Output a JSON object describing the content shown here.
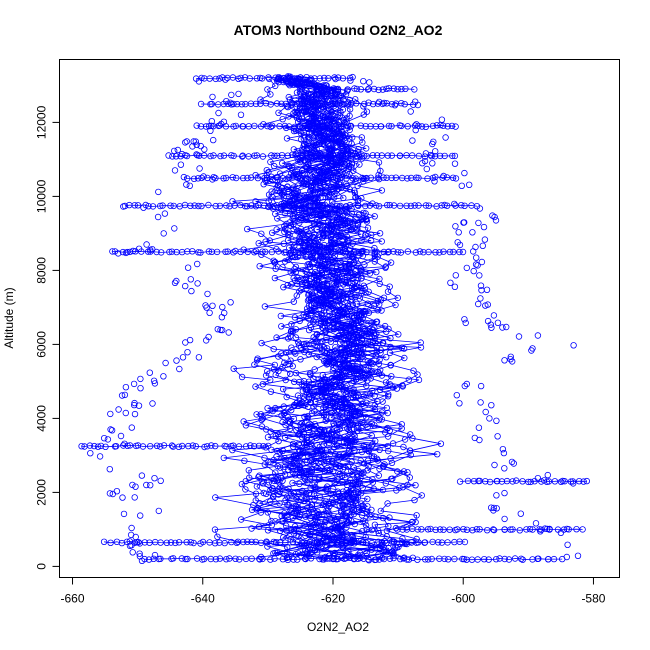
{
  "chart_data": {
    "type": "scatter",
    "title": "ATOM3 Northbound O2N2_AO2",
    "xlabel": "O2N2_AO2",
    "ylabel": "Altitude (m)",
    "xlim": [
      -662,
      -576
    ],
    "ylim": [
      -300,
      13700
    ],
    "x_ticks": [
      -660,
      -640,
      -620,
      -600,
      -580
    ],
    "y_ticks": [
      0,
      2000,
      4000,
      6000,
      8000,
      10000,
      12000
    ],
    "x_tick_labels": [
      "-660",
      "-640",
      "-620",
      "-600",
      "-580"
    ],
    "y_tick_labels": [
      "0",
      "2000",
      "4000",
      "6000",
      "8000",
      "10000",
      "12000"
    ],
    "grid": false,
    "legend": "none",
    "series": [
      {
        "color": "#0000ff",
        "marker": "open-circle",
        "style": "points-and-lines",
        "profile": [
          {
            "alt": 200,
            "x_min": -651,
            "x_max": -582,
            "x_center": -618
          },
          {
            "alt": 500,
            "x_min": -656,
            "x_max": -580,
            "x_center": -618
          },
          {
            "alt": 1000,
            "x_min": -653,
            "x_max": -586,
            "x_center": -620
          },
          {
            "alt": 1500,
            "x_min": -652,
            "x_max": -590,
            "x_center": -621
          },
          {
            "alt": 2000,
            "x_min": -656,
            "x_max": -592,
            "x_center": -622
          },
          {
            "alt": 2300,
            "x_min": -652,
            "x_max": -581,
            "x_center": -621
          },
          {
            "alt": 2700,
            "x_min": -655,
            "x_max": -593,
            "x_center": -622
          },
          {
            "alt": 3000,
            "x_min": -660,
            "x_max": -590,
            "x_center": -622
          },
          {
            "alt": 3300,
            "x_min": -658,
            "x_max": -593,
            "x_center": -621
          },
          {
            "alt": 4000,
            "x_min": -655,
            "x_max": -593,
            "x_center": -620
          },
          {
            "alt": 4500,
            "x_min": -653,
            "x_max": -596,
            "x_center": -620
          },
          {
            "alt": 5000,
            "x_min": -652,
            "x_max": -594,
            "x_center": -619
          },
          {
            "alt": 5500,
            "x_min": -648,
            "x_max": -592,
            "x_center": -619
          },
          {
            "alt": 6000,
            "x_min": -643,
            "x_max": -582,
            "x_center": -619
          },
          {
            "alt": 6500,
            "x_min": -641,
            "x_max": -594,
            "x_center": -619
          },
          {
            "alt": 7000,
            "x_min": -640,
            "x_max": -594,
            "x_center": -620
          },
          {
            "alt": 7500,
            "x_min": -645,
            "x_max": -596,
            "x_center": -621
          },
          {
            "alt": 8000,
            "x_min": -643,
            "x_max": -597,
            "x_center": -621
          },
          {
            "alt": 8500,
            "x_min": -654,
            "x_max": -595,
            "x_center": -622
          },
          {
            "alt": 9000,
            "x_min": -646,
            "x_max": -596,
            "x_center": -621
          },
          {
            "alt": 9500,
            "x_min": -648,
            "x_max": -594,
            "x_center": -621
          },
          {
            "alt": 9750,
            "x_min": -654,
            "x_max": -596,
            "x_center": -624
          },
          {
            "alt": 10000,
            "x_min": -648,
            "x_max": -597,
            "x_center": -622
          },
          {
            "alt": 10500,
            "x_min": -644,
            "x_max": -599,
            "x_center": -622
          },
          {
            "alt": 11000,
            "x_min": -646,
            "x_max": -601,
            "x_center": -622
          },
          {
            "alt": 11500,
            "x_min": -643,
            "x_max": -602,
            "x_center": -621
          },
          {
            "alt": 12000,
            "x_min": -640,
            "x_max": -602,
            "x_center": -621
          },
          {
            "alt": 12500,
            "x_min": -640,
            "x_max": -607,
            "x_center": -622
          },
          {
            "alt": 12900,
            "x_min": -639,
            "x_max": -609,
            "x_center": -622
          },
          {
            "alt": 13200,
            "x_min": -642,
            "x_max": -616,
            "x_center": -628
          }
        ],
        "horizontal_legs": [
          {
            "alt": 200,
            "x_start": -649,
            "x_end": -585
          },
          {
            "alt": 650,
            "x_start": -655,
            "x_end": -600
          },
          {
            "alt": 1000,
            "x_start": -610,
            "x_end": -582
          },
          {
            "alt": 2300,
            "x_start": -600,
            "x_end": -581
          },
          {
            "alt": 3250,
            "x_start": -659,
            "x_end": -630
          },
          {
            "alt": 8500,
            "x_start": -654,
            "x_end": -600
          },
          {
            "alt": 9750,
            "x_start": -652,
            "x_end": -598
          },
          {
            "alt": 10500,
            "x_start": -643,
            "x_end": -601
          },
          {
            "alt": 11100,
            "x_start": -645,
            "x_end": -601
          },
          {
            "alt": 11900,
            "x_start": -641,
            "x_end": -601
          },
          {
            "alt": 12500,
            "x_start": -640,
            "x_end": -608
          },
          {
            "alt": 12900,
            "x_start": -620,
            "x_end": -608
          },
          {
            "alt": 13200,
            "x_start": -641,
            "x_end": -617
          }
        ]
      }
    ]
  }
}
